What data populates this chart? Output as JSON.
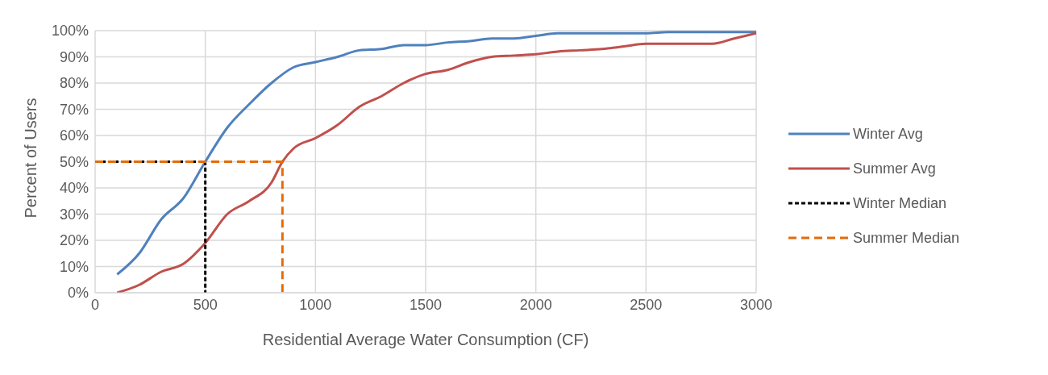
{
  "chart_data": {
    "type": "line",
    "xlabel": "Residential Average Water Consumption (CF)",
    "ylabel": "Percent of Users",
    "xlim": [
      0,
      3000
    ],
    "xticks": [
      0,
      500,
      1000,
      1500,
      2000,
      2500,
      3000
    ],
    "ylim": [
      0,
      100
    ],
    "yticks": [
      {
        "value": 0,
        "label": "0%"
      },
      {
        "value": 10,
        "label": "10%"
      },
      {
        "value": 20,
        "label": "20%"
      },
      {
        "value": 30,
        "label": "30%"
      },
      {
        "value": 40,
        "label": "40%"
      },
      {
        "value": 50,
        "label": "50%"
      },
      {
        "value": 60,
        "label": "60%"
      },
      {
        "value": 70,
        "label": "70%"
      },
      {
        "value": 80,
        "label": "80%"
      },
      {
        "value": 90,
        "label": "90%"
      },
      {
        "value": 100,
        "label": "100%"
      }
    ],
    "grid": true,
    "legend": "right",
    "marker": "none",
    "series": [
      {
        "name": "Winter Avg",
        "color": "#4f81bd",
        "line_style": "solid",
        "x": [
          100,
          200,
          300,
          400,
          500,
          600,
          700,
          800,
          900,
          1000,
          1100,
          1200,
          1300,
          1400,
          1500,
          1600,
          1700,
          1800,
          1900,
          2000,
          2100,
          2200,
          2300,
          2400,
          2500,
          2600,
          2700,
          2800,
          2900,
          3000
        ],
        "values": [
          7,
          15,
          28,
          36,
          50,
          63,
          72,
          80,
          86,
          88,
          90,
          92.5,
          93,
          94.5,
          94.5,
          95.5,
          96,
          97,
          97,
          98,
          99,
          99,
          99,
          99,
          99,
          99.5,
          99.5,
          99.5,
          99.5,
          99.5
        ]
      },
      {
        "name": "Summer Avg",
        "color": "#c0504d",
        "line_style": "solid",
        "x": [
          100,
          200,
          300,
          400,
          500,
          600,
          700,
          800,
          850,
          900,
          1000,
          1100,
          1200,
          1300,
          1400,
          1500,
          1600,
          1700,
          1800,
          1900,
          2000,
          2100,
          2200,
          2300,
          2400,
          2500,
          2600,
          2700,
          2800,
          2900,
          3000
        ],
        "values": [
          0,
          3,
          8,
          11,
          19,
          30,
          35,
          42,
          50,
          55,
          59,
          64,
          71,
          75,
          80,
          83.5,
          85,
          88,
          90,
          90.5,
          91,
          92,
          92.5,
          93,
          94,
          95,
          95,
          95,
          95,
          97,
          99
        ]
      },
      {
        "name": "Winter Median",
        "color": "#000000",
        "line_style": "dotted",
        "x": [
          0,
          500,
          500
        ],
        "values": [
          50,
          50,
          0
        ]
      },
      {
        "name": "Summer Median",
        "color": "#e36c09",
        "line_style": "dashed",
        "x": [
          0,
          850,
          850
        ],
        "values": [
          50,
          50,
          0
        ]
      }
    ]
  }
}
